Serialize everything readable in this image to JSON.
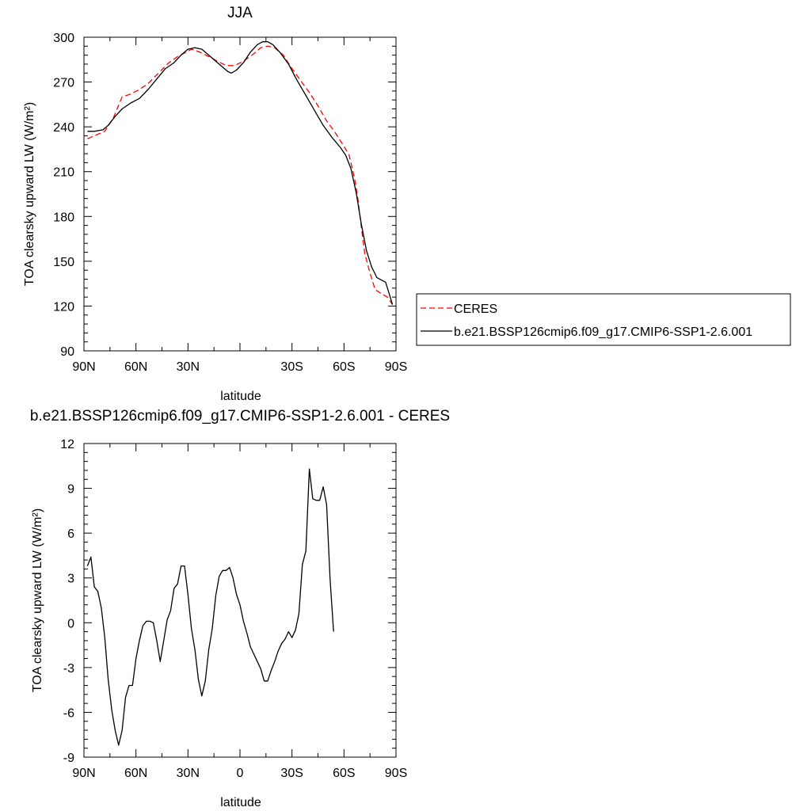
{
  "chart_data": [
    {
      "type": "line",
      "title": "JJA",
      "xlabel": "latitude",
      "ylabel": "TOA clearsky upward LW (W/m²)",
      "xlim": [
        -90,
        90
      ],
      "ylim": [
        90,
        300
      ],
      "x_ticks": [
        -90,
        -60,
        -30,
        0,
        30,
        60,
        90
      ],
      "x_tick_labels": [
        "90N",
        "60N",
        "30N",
        "",
        "30S",
        "60S",
        "90S"
      ],
      "y_ticks": [
        90,
        120,
        150,
        180,
        210,
        240,
        270,
        300
      ],
      "y_tick_labels": [
        "90",
        "120",
        "150",
        "180",
        "210",
        "240",
        "270",
        "300"
      ],
      "grid": false,
      "legend_position": "right",
      "series": [
        {
          "name": "CERES",
          "color": "#ff0000",
          "dash": "dashed",
          "points": [
            [
              -88,
              232
            ],
            [
              -84,
              234
            ],
            [
              -78,
              237
            ],
            [
              -73,
              246
            ],
            [
              -68,
              260
            ],
            [
              -63,
              262
            ],
            [
              -58,
              265
            ],
            [
              -53,
              269
            ],
            [
              -47,
              276
            ],
            [
              -41,
              283
            ],
            [
              -36,
              287
            ],
            [
              -31,
              290
            ],
            [
              -28,
              292
            ],
            [
              -23,
              290
            ],
            [
              -18,
              287
            ],
            [
              -13,
              284
            ],
            [
              -8,
              281
            ],
            [
              -3,
              281
            ],
            [
              2,
              284
            ],
            [
              7,
              288
            ],
            [
              12,
              293
            ],
            [
              16,
              294
            ],
            [
              20,
              293
            ],
            [
              25,
              288
            ],
            [
              30,
              279
            ],
            [
              35,
              271
            ],
            [
              40,
              263
            ],
            [
              45,
              254
            ],
            [
              50,
              244
            ],
            [
              55,
              236
            ],
            [
              60,
              227
            ],
            [
              63,
              221
            ],
            [
              66,
              206
            ],
            [
              68,
              192
            ],
            [
              70,
              173
            ],
            [
              72,
              155
            ],
            [
              75,
              142
            ],
            [
              78,
              131
            ],
            [
              82,
              128
            ],
            [
              85,
              126
            ],
            [
              88,
              121
            ]
          ]
        },
        {
          "name": "b.e21.BSSP126cmip6.f09_g17.CMIP6-SSP1-2.6.001",
          "color": "#000000",
          "dash": "solid",
          "points": [
            [
              -88,
              237
            ],
            [
              -84,
              237
            ],
            [
              -79,
              238
            ],
            [
              -76,
              241
            ],
            [
              -72,
              247
            ],
            [
              -68,
              252
            ],
            [
              -63,
              256
            ],
            [
              -58,
              259
            ],
            [
              -53,
              265
            ],
            [
              -48,
              272
            ],
            [
              -43,
              279
            ],
            [
              -38,
              283
            ],
            [
              -34,
              288
            ],
            [
              -30,
              292
            ],
            [
              -26,
              293
            ],
            [
              -22,
              292
            ],
            [
              -18,
              288
            ],
            [
              -14,
              284
            ],
            [
              -10,
              280
            ],
            [
              -7,
              277
            ],
            [
              -5,
              276
            ],
            [
              -2,
              278
            ],
            [
              2,
              283
            ],
            [
              6,
              290
            ],
            [
              10,
              295
            ],
            [
              13,
              297
            ],
            [
              16,
              297
            ],
            [
              19,
              295
            ],
            [
              23,
              290
            ],
            [
              28,
              282
            ],
            [
              33,
              271
            ],
            [
              38,
              261
            ],
            [
              43,
              251
            ],
            [
              48,
              241
            ],
            [
              53,
              233
            ],
            [
              58,
              226
            ],
            [
              61,
              221
            ],
            [
              64,
              212
            ],
            [
              67,
              196
            ],
            [
              70,
              175
            ],
            [
              73,
              157
            ],
            [
              76,
              146
            ],
            [
              79,
              139
            ],
            [
              84,
              136
            ],
            [
              88,
              121
            ]
          ]
        }
      ]
    },
    {
      "type": "line",
      "title": "b.e21.BSSP126cmip6.f09_g17.CMIP6-SSP1-2.6.001 - CERES",
      "xlabel": "latitude",
      "ylabel": "TOA clearsky upward LW (W/m²)",
      "xlim": [
        -90,
        90
      ],
      "ylim": [
        -9,
        12
      ],
      "x_ticks": [
        -90,
        -60,
        -30,
        0,
        30,
        60,
        90
      ],
      "x_tick_labels": [
        "90N",
        "60N",
        "30N",
        "0",
        "30S",
        "60S",
        "90S"
      ],
      "y_ticks": [
        -9,
        -6,
        -3,
        0,
        3,
        6,
        9,
        12
      ],
      "y_tick_labels": [
        "-9",
        "-6",
        "-3",
        "0",
        "3",
        "6",
        "9",
        "12"
      ],
      "grid": false,
      "series": [
        {
          "color": "#000000",
          "dash": "solid",
          "points": [
            [
              -88,
              3.8
            ],
            [
              -86,
              4.4
            ],
            [
              -84,
              2.4
            ],
            [
              -82,
              2.1
            ],
            [
              -80,
              1.0
            ],
            [
              -78,
              -1.0
            ],
            [
              -76,
              -3.8
            ],
            [
              -74,
              -5.8
            ],
            [
              -72,
              -7.2
            ],
            [
              -70,
              -8.2
            ],
            [
              -68,
              -7.2
            ],
            [
              -66,
              -5.0
            ],
            [
              -64,
              -4.2
            ],
            [
              -62,
              -4.2
            ],
            [
              -60,
              -2.4
            ],
            [
              -58,
              -1.2
            ],
            [
              -56,
              -0.2
            ],
            [
              -54,
              0.1
            ],
            [
              -52,
              0.1
            ],
            [
              -50,
              0.0
            ],
            [
              -48,
              -1.2
            ],
            [
              -46,
              -2.6
            ],
            [
              -44,
              -1.2
            ],
            [
              -42,
              0.2
            ],
            [
              -40,
              0.8
            ],
            [
              -38,
              2.3
            ],
            [
              -36,
              2.6
            ],
            [
              -34,
              3.8
            ],
            [
              -32,
              3.8
            ],
            [
              -30,
              1.9
            ],
            [
              -28,
              -0.4
            ],
            [
              -26,
              -1.8
            ],
            [
              -24,
              -3.8
            ],
            [
              -22,
              -4.9
            ],
            [
              -20,
              -3.9
            ],
            [
              -18,
              -1.8
            ],
            [
              -16,
              -0.4
            ],
            [
              -14,
              1.8
            ],
            [
              -12,
              3.1
            ],
            [
              -10,
              3.5
            ],
            [
              -8,
              3.5
            ],
            [
              -6,
              3.7
            ],
            [
              -4,
              3.0
            ],
            [
              -2,
              1.9
            ],
            [
              0,
              1.2
            ],
            [
              2,
              0.1
            ],
            [
              4,
              -0.7
            ],
            [
              6,
              -1.6
            ],
            [
              8,
              -2.1
            ],
            [
              10,
              -2.6
            ],
            [
              12,
              -3.1
            ],
            [
              14,
              -3.9
            ],
            [
              16,
              -3.9
            ],
            [
              18,
              -3.2
            ],
            [
              20,
              -2.6
            ],
            [
              22,
              -1.9
            ],
            [
              24,
              -1.4
            ],
            [
              26,
              -1.1
            ],
            [
              28,
              -0.6
            ],
            [
              30,
              -1.0
            ],
            [
              32,
              -0.5
            ],
            [
              34,
              0.6
            ],
            [
              36,
              3.9
            ],
            [
              38,
              4.8
            ],
            [
              40,
              10.3
            ],
            [
              42,
              8.3
            ],
            [
              44,
              8.2
            ],
            [
              46,
              8.2
            ],
            [
              48,
              9.1
            ],
            [
              50,
              7.9
            ],
            [
              52,
              2.9
            ],
            [
              54,
              -0.6
            ]
          ]
        }
      ]
    }
  ]
}
